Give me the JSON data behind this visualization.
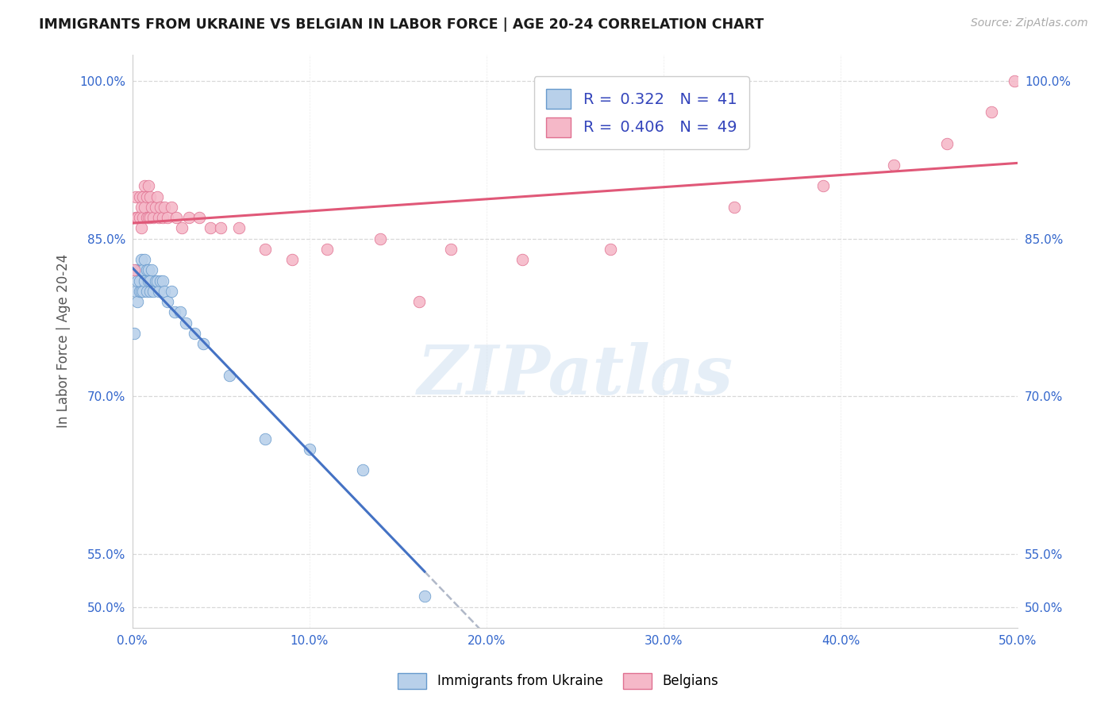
{
  "title": "IMMIGRANTS FROM UKRAINE VS BELGIAN IN LABOR FORCE | AGE 20-24 CORRELATION CHART",
  "source": "Source: ZipAtlas.com",
  "ylabel": "In Labor Force | Age 20-24",
  "xlim": [
    0.0,
    0.5
  ],
  "ylim": [
    0.48,
    1.025
  ],
  "xticks": [
    0.0,
    0.1,
    0.2,
    0.3,
    0.4,
    0.5
  ],
  "xticklabels": [
    "0.0%",
    "10.0%",
    "20.0%",
    "30.0%",
    "40.0%",
    "50.0%"
  ],
  "ytick_positions": [
    0.5,
    0.55,
    0.7,
    0.85,
    1.0
  ],
  "ytick_labels": [
    "50.0%",
    "55.0%",
    "70.0%",
    "85.0%",
    "100.0%"
  ],
  "R_ukraine": 0.322,
  "N_ukraine": 41,
  "R_belgian": 0.406,
  "N_belgian": 49,
  "ukraine_fill": "#b8d0ea",
  "ukraine_edge": "#6699cc",
  "belgian_fill": "#f5b8c8",
  "belgian_edge": "#e07090",
  "ukraine_line": "#4472c4",
  "belgian_line": "#e05878",
  "dash_color": "#b0b8c8",
  "watermark": "ZIPatlas",
  "bg": "#ffffff",
  "grid_color": "#d8d8d8",
  "ukraine_x": [
    0.001,
    0.002,
    0.002,
    0.003,
    0.003,
    0.004,
    0.004,
    0.004,
    0.005,
    0.005,
    0.005,
    0.006,
    0.006,
    0.007,
    0.007,
    0.008,
    0.008,
    0.009,
    0.009,
    0.01,
    0.01,
    0.011,
    0.012,
    0.013,
    0.014,
    0.015,
    0.016,
    0.017,
    0.018,
    0.02,
    0.022,
    0.024,
    0.027,
    0.03,
    0.035,
    0.04,
    0.055,
    0.075,
    0.1,
    0.13,
    0.165
  ],
  "ukraine_y": [
    0.76,
    0.8,
    0.82,
    0.79,
    0.81,
    0.8,
    0.81,
    0.82,
    0.8,
    0.82,
    0.83,
    0.8,
    0.82,
    0.81,
    0.83,
    0.8,
    0.82,
    0.81,
    0.82,
    0.8,
    0.81,
    0.82,
    0.8,
    0.81,
    0.81,
    0.8,
    0.81,
    0.81,
    0.8,
    0.79,
    0.8,
    0.78,
    0.78,
    0.77,
    0.76,
    0.75,
    0.72,
    0.66,
    0.65,
    0.63,
    0.51
  ],
  "belgian_x": [
    0.001,
    0.002,
    0.002,
    0.003,
    0.004,
    0.004,
    0.005,
    0.005,
    0.006,
    0.006,
    0.007,
    0.007,
    0.008,
    0.008,
    0.009,
    0.009,
    0.01,
    0.01,
    0.011,
    0.012,
    0.013,
    0.014,
    0.015,
    0.016,
    0.017,
    0.018,
    0.02,
    0.022,
    0.025,
    0.028,
    0.032,
    0.038,
    0.044,
    0.05,
    0.06,
    0.075,
    0.09,
    0.11,
    0.14,
    0.18,
    0.22,
    0.27,
    0.34,
    0.39,
    0.43,
    0.46,
    0.485,
    0.498,
    0.162
  ],
  "belgian_y": [
    0.82,
    0.87,
    0.89,
    0.87,
    0.87,
    0.89,
    0.86,
    0.88,
    0.87,
    0.89,
    0.88,
    0.9,
    0.87,
    0.89,
    0.87,
    0.9,
    0.87,
    0.89,
    0.88,
    0.87,
    0.88,
    0.89,
    0.87,
    0.88,
    0.87,
    0.88,
    0.87,
    0.88,
    0.87,
    0.86,
    0.87,
    0.87,
    0.86,
    0.86,
    0.86,
    0.84,
    0.83,
    0.84,
    0.85,
    0.84,
    0.83,
    0.84,
    0.88,
    0.9,
    0.92,
    0.94,
    0.97,
    1.0,
    0.79
  ]
}
